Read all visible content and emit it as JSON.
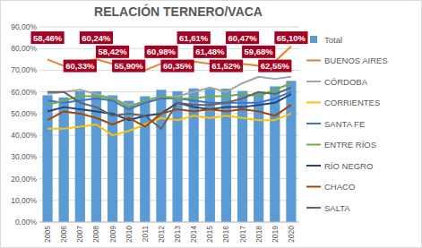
{
  "chart_data": {
    "type": "bar",
    "title": "RELACIÓN TERNERO/VACA",
    "categories": [
      "2005",
      "2006",
      "2007",
      "2008",
      "2009",
      "2010",
      "2011",
      "2012",
      "2013",
      "2014",
      "2015",
      "2016",
      "2017",
      "2018",
      "2019",
      "2020"
    ],
    "ylim": [
      0,
      90
    ],
    "yticks": [
      {
        "value": 0,
        "label": "0,00%"
      },
      {
        "value": 10,
        "label": "10,00%"
      },
      {
        "value": 20,
        "label": "20,00%"
      },
      {
        "value": 30,
        "label": "30,00%"
      },
      {
        "value": 40,
        "label": "40,00%"
      },
      {
        "value": 50,
        "label": "50,00%"
      },
      {
        "value": 60,
        "label": "60,00%"
      },
      {
        "value": 70,
        "label": "70,00%"
      },
      {
        "value": 80,
        "label": "80,00%"
      },
      {
        "value": 90,
        "label": "90,00%"
      }
    ],
    "grid": true,
    "legend": "right",
    "data_labels": true,
    "series": [
      {
        "name": "Total",
        "type": "bar",
        "color": "#5B9BD5",
        "values": [
          58.46,
          57.5,
          60.33,
          60.24,
          58.42,
          55.9,
          58,
          60.98,
          60.35,
          61.61,
          61.48,
          61.52,
          60.47,
          59.68,
          62.55,
          65.1
        ],
        "value_labels": [
          "58,46%",
          null,
          "60,33%",
          "60,24%",
          "58,42%",
          "55,90%",
          null,
          "60,98%",
          "60,35%",
          "61,61%",
          "61,48%",
          "61,52%",
          "60,47%",
          "59,68%",
          "62,55%",
          "65,10%"
        ]
      },
      {
        "name": "BUENOS AIRES",
        "type": "line",
        "color": "#ED7D31",
        "values": [
          75,
          72,
          74,
          75,
          73,
          72,
          70,
          73,
          73,
          74,
          73,
          74,
          73,
          72,
          74,
          81
        ]
      },
      {
        "name": "CÓRDOBA",
        "type": "line",
        "color": "#A5A5A5",
        "values": [
          59,
          60,
          61,
          59,
          57,
          54,
          55,
          57,
          58,
          60,
          62,
          60,
          64,
          67,
          66,
          67
        ]
      },
      {
        "name": "CORRIENTES",
        "type": "line",
        "color": "#FFC000",
        "values": [
          43,
          43,
          44,
          45,
          40,
          42,
          45,
          48,
          47,
          49,
          48,
          49,
          48,
          47,
          47,
          50
        ]
      },
      {
        "name": "SANTA FE",
        "type": "line",
        "color": "#4472C4",
        "values": [
          56,
          55,
          56,
          57,
          56,
          52,
          55,
          57,
          57,
          56,
          55,
          55,
          55,
          55,
          57,
          60
        ]
      },
      {
        "name": "ENTRE RÍOS",
        "type": "line",
        "color": "#70AD47",
        "values": [
          54,
          56,
          58,
          58,
          57,
          53,
          56,
          58,
          57,
          57,
          58,
          58,
          59,
          58,
          61,
          64
        ]
      },
      {
        "name": "RÍO NEGRO",
        "type": "line",
        "color": "#264478",
        "values": [
          51,
          53,
          52,
          51,
          50,
          47,
          49,
          50,
          55,
          53,
          52,
          53,
          53,
          54,
          55,
          59
        ]
      },
      {
        "name": "CHACO",
        "type": "line",
        "color": "#9E480E",
        "values": [
          47,
          51,
          50,
          48,
          45,
          48,
          44,
          50,
          52,
          51,
          52,
          51,
          52,
          51,
          49,
          54
        ]
      },
      {
        "name": "SALTA",
        "type": "line",
        "color": "#636363",
        "values": [
          60,
          60,
          55,
          53,
          49,
          50,
          49,
          43,
          55,
          54,
          54,
          55,
          57,
          60,
          59,
          62
        ]
      }
    ]
  }
}
